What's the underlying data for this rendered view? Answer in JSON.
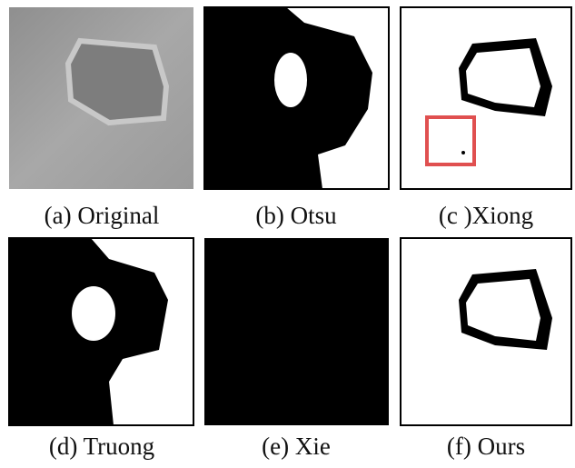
{
  "panels": [
    {
      "caption": "(a) Original"
    },
    {
      "caption": "(b) Otsu"
    },
    {
      "caption": "(c )Xiong"
    },
    {
      "caption": "(d) Truong"
    },
    {
      "caption": "(e) Xie"
    },
    {
      "caption": "(f) Ours"
    }
  ]
}
